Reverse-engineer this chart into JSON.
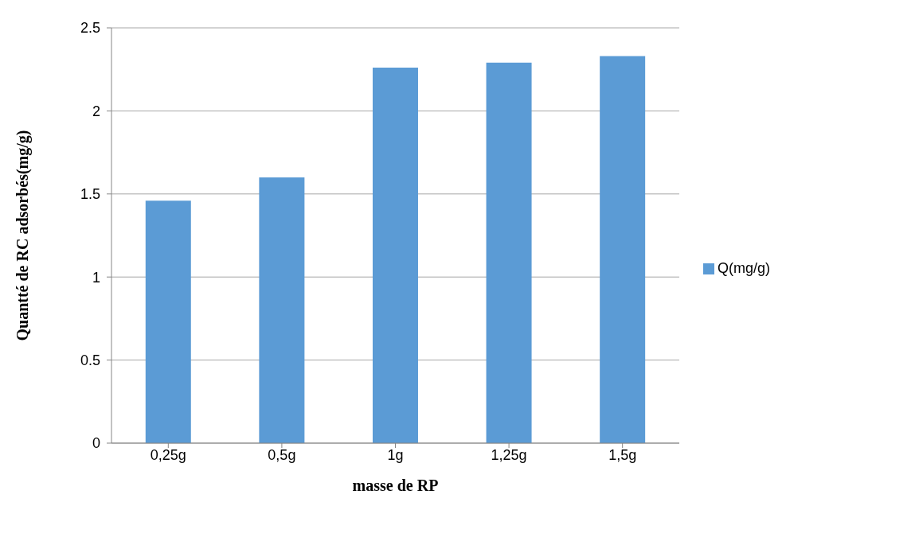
{
  "chart_data": {
    "type": "bar",
    "xlabel": "masse de RP",
    "ylabel": "Quantté de RC adsorbés(mg/g)",
    "categories": [
      "0,25g",
      "0,5g",
      "1g",
      "1,25g",
      "1,5g"
    ],
    "series": [
      {
        "name": "Q(mg/g)",
        "color": "#5b9bd5",
        "values": [
          1.46,
          1.6,
          2.26,
          2.29,
          2.33
        ]
      }
    ],
    "ylim": [
      0,
      2.5
    ],
    "yticks": [
      0,
      0.5,
      1,
      1.5,
      2,
      2.5
    ],
    "grid": "y",
    "legend": "right"
  }
}
